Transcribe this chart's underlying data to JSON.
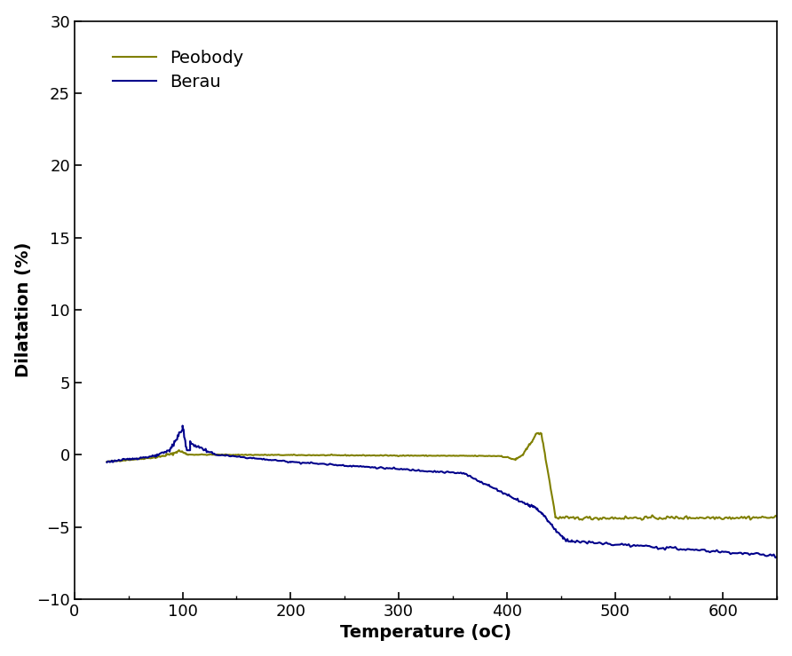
{
  "title": "",
  "xlabel": "Temperature (oC)",
  "ylabel": "Dilatation (%)",
  "xlim": [
    0,
    650
  ],
  "ylim": [
    -10,
    30
  ],
  "yticks": [
    -10,
    -5,
    0,
    5,
    10,
    15,
    20,
    25,
    30
  ],
  "xticks": [
    0,
    100,
    200,
    300,
    400,
    500,
    600
  ],
  "legend_entries": [
    "Peobody",
    "Berau"
  ],
  "peobody_color": "#808000",
  "berau_color": "#00008B",
  "background_color": "#ffffff",
  "grid": false,
  "legend_loc": "upper left",
  "font_size": 14
}
